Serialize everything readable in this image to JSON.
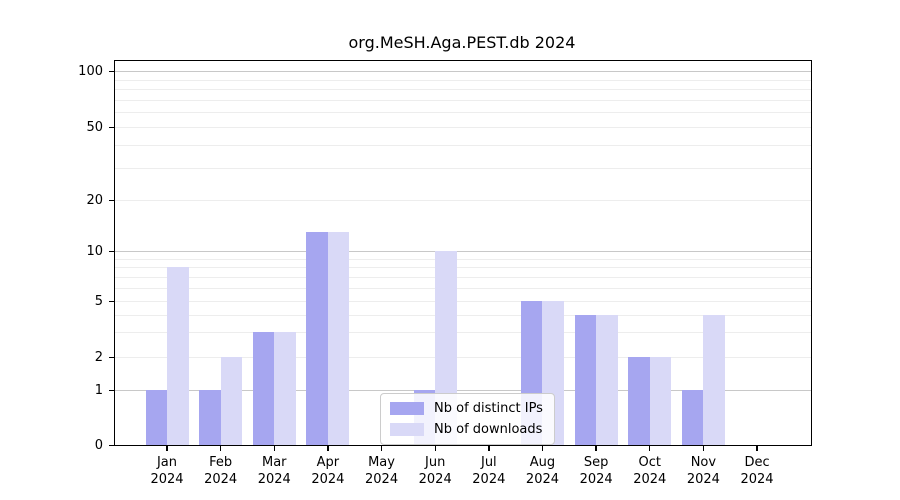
{
  "title": "org.MeSH.Aga.PEST.db 2024",
  "chart_data": {
    "type": "bar",
    "title": "org.MeSH.Aga.PEST.db 2024",
    "xlabel": "",
    "ylabel": "",
    "categories": [
      "Jan 2024",
      "Feb 2024",
      "Mar 2024",
      "Apr 2024",
      "May 2024",
      "Jun 2024",
      "Jul 2024",
      "Aug 2024",
      "Sep 2024",
      "Oct 2024",
      "Nov 2024",
      "Dec 2024"
    ],
    "series": [
      {
        "name": "Nb of distinct IPs",
        "color": "#a6a6f0",
        "values": [
          1,
          1,
          3,
          13,
          0,
          1,
          0,
          5,
          4,
          2,
          1,
          0
        ]
      },
      {
        "name": "Nb of downloads",
        "color": "#d9d9f7",
        "values": [
          8,
          2,
          3,
          13,
          0,
          10,
          0,
          5,
          4,
          2,
          4,
          0
        ]
      }
    ],
    "yscale": "symlog",
    "yticks": [
      0,
      1,
      2,
      5,
      10,
      20,
      50,
      100
    ],
    "grid_major": [
      1,
      10,
      100
    ],
    "grid_minor": [
      2,
      3,
      4,
      5,
      6,
      7,
      8,
      9,
      20,
      30,
      40,
      50,
      60,
      70,
      80,
      90
    ],
    "ylim": [
      0,
      115
    ],
    "grid": true,
    "legend_position": "lower-center"
  },
  "colors": {
    "distinct_ips": "#a6a6f0",
    "downloads": "#d9d9f7",
    "grid_major": "#c8c8c8",
    "grid_minor": "#ededed",
    "background": "#ffffff"
  }
}
